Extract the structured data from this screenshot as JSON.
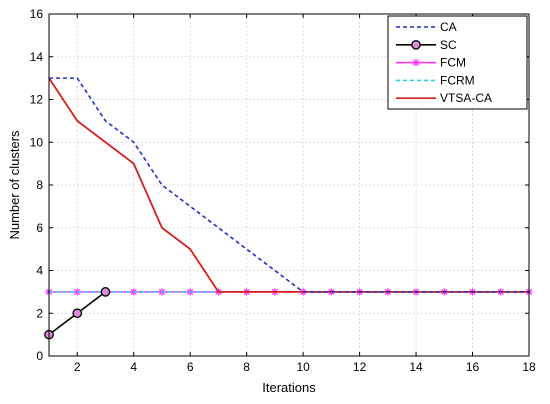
{
  "chart_data": {
    "type": "line",
    "title": "",
    "xlabel": "Iterations",
    "ylabel": "Number of clusters",
    "xlim": [
      1,
      18
    ],
    "ylim": [
      0,
      16
    ],
    "xticks": [
      2,
      4,
      6,
      8,
      10,
      12,
      14,
      16,
      18
    ],
    "yticks": [
      0,
      2,
      4,
      6,
      8,
      10,
      12,
      14,
      16
    ],
    "grid": true,
    "legend_position": "top-right",
    "series": [
      {
        "name": "CA",
        "color": "#1f2fc8",
        "line_style": "dashed",
        "marker": "none",
        "x": [
          1,
          2,
          3,
          4,
          5,
          10,
          11,
          12,
          13,
          14,
          15,
          16,
          17,
          18
        ],
        "y": [
          13,
          13,
          11,
          10,
          8,
          3,
          3,
          3,
          3,
          3,
          3,
          3,
          3,
          3
        ]
      },
      {
        "name": "SC",
        "color": "#000000",
        "line_style": "solid",
        "marker": "circle",
        "x": [
          1,
          2,
          3
        ],
        "y": [
          1,
          2,
          3
        ]
      },
      {
        "name": "FCM",
        "color": "#ff33ff",
        "line_style": "solid",
        "marker": "asterisk",
        "x": [
          1,
          2,
          3,
          4,
          5,
          6,
          7,
          8,
          9,
          10,
          11,
          12,
          13,
          14,
          15,
          16,
          17,
          18
        ],
        "y": [
          3,
          3,
          3,
          3,
          3,
          3,
          3,
          3,
          3,
          3,
          3,
          3,
          3,
          3,
          3,
          3,
          3,
          3
        ]
      },
      {
        "name": "FCRM",
        "color": "#22d3e6",
        "line_style": "dashed",
        "marker": "none",
        "x": [
          1,
          2,
          3,
          4,
          5,
          6,
          7,
          8,
          9,
          10,
          11,
          12,
          13,
          14,
          15,
          16,
          17,
          18
        ],
        "y": [
          3,
          3,
          3,
          3,
          3,
          3,
          3,
          3,
          3,
          3,
          3,
          3,
          3,
          3,
          3,
          3,
          3,
          3
        ]
      },
      {
        "name": "VTSA-CA",
        "color": "#d62020",
        "line_style": "solid",
        "marker": "none",
        "x": [
          1,
          2,
          3,
          4,
          5,
          6,
          7,
          8,
          9,
          10,
          11,
          12,
          13,
          14,
          15,
          16,
          17,
          18
        ],
        "y": [
          13,
          11,
          10,
          9,
          6,
          5,
          3,
          3,
          3,
          3,
          3,
          3,
          3,
          3,
          3,
          3,
          3,
          3
        ]
      }
    ]
  }
}
